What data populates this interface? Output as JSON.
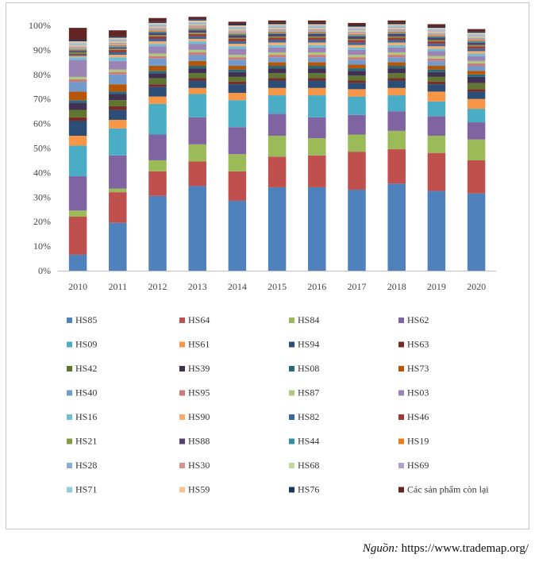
{
  "chart_data": {
    "type": "bar",
    "stacked": true,
    "categories": [
      "2010",
      "2011",
      "2012",
      "2013",
      "2014",
      "2015",
      "2016",
      "2017",
      "2018",
      "2019",
      "2020"
    ],
    "y_ticks": [
      "0%",
      "10%",
      "20%",
      "30%",
      "40%",
      "50%",
      "60%",
      "70%",
      "80%",
      "90%",
      "100%"
    ],
    "ylim": [
      0,
      100
    ],
    "grid": false,
    "legend_position": "bottom",
    "legend_columns": 4,
    "series": [
      {
        "name": "HS85",
        "color": "#4F81BD",
        "values": [
          6.5,
          19.5,
          30.5,
          34.5,
          28.5,
          34,
          34,
          33,
          35.5,
          32.5,
          31.5
        ]
      },
      {
        "name": "HS64",
        "color": "#C0504D",
        "values": [
          15.5,
          12.5,
          10,
          10,
          12,
          12.5,
          13,
          15.5,
          14,
          15.5,
          13.5
        ]
      },
      {
        "name": "HS84",
        "color": "#9BBB59",
        "values": [
          2.5,
          1.5,
          4.5,
          7,
          7,
          8.5,
          7,
          7,
          7.5,
          7,
          8.5
        ]
      },
      {
        "name": "HS62",
        "color": "#8064A2",
        "values": [
          14,
          13.5,
          10.5,
          11,
          11,
          9,
          8.5,
          8,
          8,
          8,
          7
        ]
      },
      {
        "name": "HS09",
        "color": "#4BACC6",
        "values": [
          12.5,
          11,
          12.5,
          9.5,
          11,
          7.5,
          9,
          7.5,
          6.5,
          6,
          5.5
        ]
      },
      {
        "name": "HS61",
        "color": "#F79646",
        "values": [
          4,
          3.5,
          3,
          2.5,
          3,
          3,
          3,
          3,
          3,
          4,
          4
        ]
      },
      {
        "name": "HS94",
        "color": "#2C4D75",
        "values": [
          6,
          4,
          4,
          3,
          3.5,
          3,
          3,
          2.5,
          3,
          3,
          3
        ]
      },
      {
        "name": "HS63",
        "color": "#772C2A",
        "values": [
          1.5,
          1.5,
          1,
          1,
          1,
          1,
          1,
          1,
          1,
          1,
          1
        ]
      },
      {
        "name": "HS42",
        "color": "#5F7530",
        "values": [
          3,
          2.5,
          2.5,
          2,
          2,
          2,
          2,
          2,
          2,
          2,
          2.5
        ]
      },
      {
        "name": "HS39",
        "color": "#403152",
        "values": [
          3,
          2.5,
          2,
          2,
          2,
          2,
          2,
          2,
          2,
          2,
          2.5
        ]
      },
      {
        "name": "HS08",
        "color": "#276A7C",
        "values": [
          1,
          1,
          1,
          1,
          1,
          1,
          1,
          1,
          1,
          1,
          1
        ]
      },
      {
        "name": "HS73",
        "color": "#B65708",
        "values": [
          3.5,
          3,
          2,
          2,
          1.5,
          1.5,
          1.5,
          1.5,
          1.5,
          1.5,
          1.5
        ]
      },
      {
        "name": "HS40",
        "color": "#729ACA",
        "values": [
          4,
          4,
          3,
          2.5,
          2.5,
          2,
          2,
          2,
          2,
          2,
          2
        ]
      },
      {
        "name": "HS95",
        "color": "#CE7A78",
        "values": [
          1,
          1,
          1,
          1,
          1,
          1,
          1,
          1,
          1,
          1,
          1
        ]
      },
      {
        "name": "HS87",
        "color": "#AEC97F",
        "values": [
          1,
          1,
          1,
          1,
          1,
          1,
          1,
          1,
          1,
          1,
          1
        ]
      },
      {
        "name": "HS03",
        "color": "#9A83B5",
        "values": [
          7,
          3.5,
          3,
          2.5,
          2.5,
          2,
          2,
          2,
          2,
          2,
          2
        ]
      },
      {
        "name": "HS16",
        "color": "#6FBDD1",
        "values": [
          1,
          1.5,
          1,
          1,
          1,
          1,
          1,
          1,
          1,
          1,
          1
        ]
      },
      {
        "name": "HS90",
        "color": "#F9AB6B",
        "values": [
          0.5,
          1,
          1,
          1,
          1,
          1,
          1,
          1,
          1,
          1,
          1
        ]
      },
      {
        "name": "HS82",
        "color": "#3A679C",
        "values": [
          0.5,
          1,
          1,
          1,
          1,
          1,
          1,
          1,
          1,
          1,
          1
        ]
      },
      {
        "name": "HS46",
        "color": "#9E3B38",
        "values": [
          0.5,
          1,
          1,
          1,
          1,
          1,
          1,
          1,
          1,
          1,
          1
        ]
      },
      {
        "name": "HS21",
        "color": "#7F9C41",
        "values": [
          0.5,
          0.5,
          0.5,
          0.5,
          0.5,
          0.5,
          0.5,
          0.5,
          0.5,
          0.5,
          0.5
        ]
      },
      {
        "name": "HS88",
        "color": "#55416C",
        "values": [
          0.5,
          0.5,
          1,
          1,
          1,
          1,
          1,
          1,
          1,
          1,
          1
        ]
      },
      {
        "name": "HS44",
        "color": "#348EA5",
        "values": [
          0.5,
          0.5,
          0.5,
          0.5,
          0.5,
          0.5,
          0.5,
          0.5,
          0.5,
          0.5,
          0.5
        ]
      },
      {
        "name": "HS19",
        "color": "#F07C13",
        "values": [
          0.5,
          0.5,
          0.5,
          0.5,
          0.5,
          0.5,
          0.5,
          0.5,
          0.5,
          0.5,
          0.5
        ]
      },
      {
        "name": "HS28",
        "color": "#8EACD3",
        "values": [
          0.5,
          0.5,
          0.5,
          0.5,
          0.5,
          0.5,
          0.5,
          0.5,
          0.5,
          0.5,
          0.5
        ]
      },
      {
        "name": "HS30",
        "color": "#D6928F",
        "values": [
          0.5,
          0.5,
          0.5,
          0.5,
          0.5,
          0.5,
          0.5,
          0.5,
          0.5,
          0.5,
          0.5
        ]
      },
      {
        "name": "HS68",
        "color": "#C3D69B",
        "values": [
          0.5,
          0.5,
          0.5,
          0.5,
          0.5,
          0.5,
          0.5,
          0.5,
          0.5,
          0.5,
          0.5
        ]
      },
      {
        "name": "HS69",
        "color": "#B3A2C7",
        "values": [
          0.5,
          0.5,
          0.5,
          0.5,
          0.5,
          0.5,
          0.5,
          0.5,
          0.5,
          0.5,
          0.5
        ]
      },
      {
        "name": "HS71",
        "color": "#92CDDC",
        "values": [
          0.5,
          0.5,
          0.5,
          0.5,
          0.5,
          0.5,
          0.5,
          0.5,
          0.5,
          0.5,
          0.5
        ]
      },
      {
        "name": "HS59",
        "color": "#FAC090",
        "values": [
          0.5,
          0.5,
          0.5,
          0.5,
          0.5,
          0.5,
          0.5,
          0.5,
          0.5,
          0.5,
          0.5
        ]
      },
      {
        "name": "HS76",
        "color": "#17375E",
        "values": [
          0.5,
          0.5,
          0.5,
          0.5,
          0.5,
          0.5,
          0.5,
          0.5,
          0.5,
          0.5,
          0.5
        ]
      },
      {
        "name": "Các sản phẩm còn lại",
        "color": "#632523",
        "values": [
          5,
          2.5,
          1.5,
          1,
          1,
          1,
          1,
          1,
          1,
          1,
          1
        ]
      }
    ]
  },
  "source": {
    "label": "Nguồn:",
    "url": "https://www.trademap.org/"
  }
}
